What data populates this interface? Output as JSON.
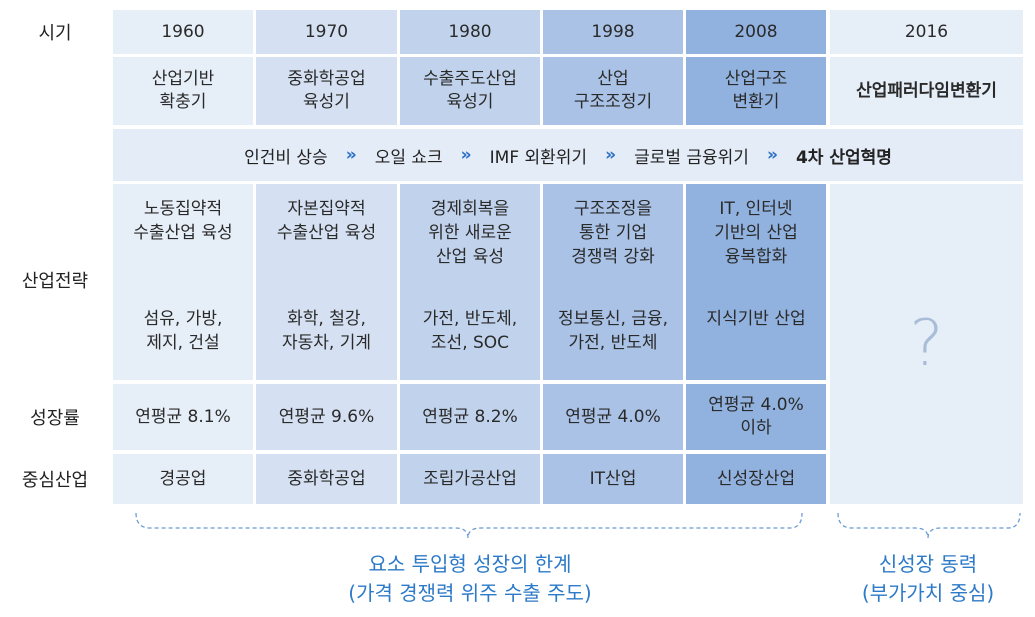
{
  "row_labels": {
    "period": "시기",
    "strategy": "산업전략",
    "growth": "성장률",
    "core": "중심산업"
  },
  "columns": [
    {
      "year": "1960",
      "stage": "산업기반\n확충기",
      "strategy": "노동집약적\n수출산업 육성",
      "industries": "섬유, 가방,\n제지, 건설",
      "growth": "연평균 8.1%",
      "core": "경공업"
    },
    {
      "year": "1970",
      "stage": "중화학공업\n육성기",
      "strategy": "자본집약적\n수출산업 육성",
      "industries": "화학, 철강,\n자동차, 기계",
      "growth": "연평균 9.6%",
      "core": "중화학공업"
    },
    {
      "year": "1980",
      "stage": "수출주도산업\n육성기",
      "strategy": "경제회복을\n위한 새로운\n산업 육성",
      "industries": "가전, 반도체,\n조선, SOC",
      "growth": "연평균 8.2%",
      "core": "조립가공산업"
    },
    {
      "year": "1998",
      "stage": "산업\n구조조정기",
      "strategy": "구조조정을\n통한 기업\n경쟁력 강화",
      "industries": "정보통신, 금융,\n가전, 반도체",
      "growth": "연평균 4.0%",
      "core": "IT산업"
    },
    {
      "year": "2008",
      "stage": "산업구조\n변환기",
      "strategy": "IT, 인터넷\n기반의 산업\n융복합화",
      "industries": "지식기반 산업",
      "growth": "연평균 4.0%\n이하",
      "core": "신성장산업"
    },
    {
      "year": "2016",
      "stage": "산업패러다임변환기",
      "unknown": "?"
    }
  ],
  "events": [
    "인건비 상승",
    "오일 쇼크",
    "IMF 외환위기",
    "글로벌 금융위기",
    "4차 산업혁명"
  ],
  "event_arrow": "»",
  "bottom": {
    "left_line1": "요소 투입형 성장의 한계",
    "left_line2": "(가격 경쟁력 위주 수출 주도)",
    "right_line1": "신성장 동력",
    "right_line2": "(부가가치 중심)"
  },
  "colors": {
    "accent_text": "#2d7ac8",
    "arrow": "#2a6fc4",
    "shade_1960": "#e6eef8",
    "shade_1970": "#d5e1f2",
    "shade_1980": "#c1d3ec",
    "shade_1998": "#a9c2e6",
    "shade_2008": "#91b2df"
  }
}
